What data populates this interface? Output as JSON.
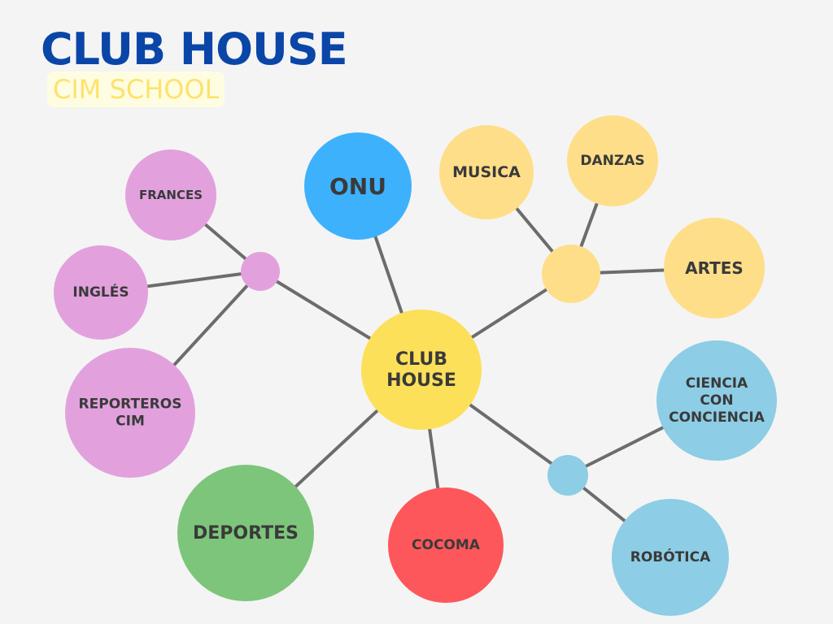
{
  "header": {
    "title": "CLUB HOUSE",
    "subtitle": "CIM SCHOOL"
  },
  "colors": {
    "title": "#0a46a8",
    "subtitle_text": "#fde26d",
    "subtitle_bg": "#fefde2",
    "center": "#fde059",
    "languages": "#e2a1dd",
    "onu": "#3eb1fd",
    "arts": "#fede88",
    "science": "#8dcde5",
    "sports": "#7dc57a",
    "cocoma": "#fe575b",
    "connector": "#6c6c6c"
  },
  "nodes": {
    "center": [
      "CLUB",
      "HOUSE"
    ],
    "onu": [
      "ONU"
    ],
    "musica": [
      "MUSICA"
    ],
    "danzas": [
      "DANZAS"
    ],
    "artes": [
      "ARTES"
    ],
    "frances": [
      "FRANCES"
    ],
    "ingles": [
      "INGLÉS"
    ],
    "reporteros": [
      "REPORTEROS",
      "CIM"
    ],
    "ciencia": [
      "CIENCIA",
      "CON",
      "CONCIENCIA"
    ],
    "robotica": [
      "ROBÓTICA"
    ],
    "deportes": [
      "DEPORTES"
    ],
    "cocoma": [
      "COCOMA"
    ]
  }
}
